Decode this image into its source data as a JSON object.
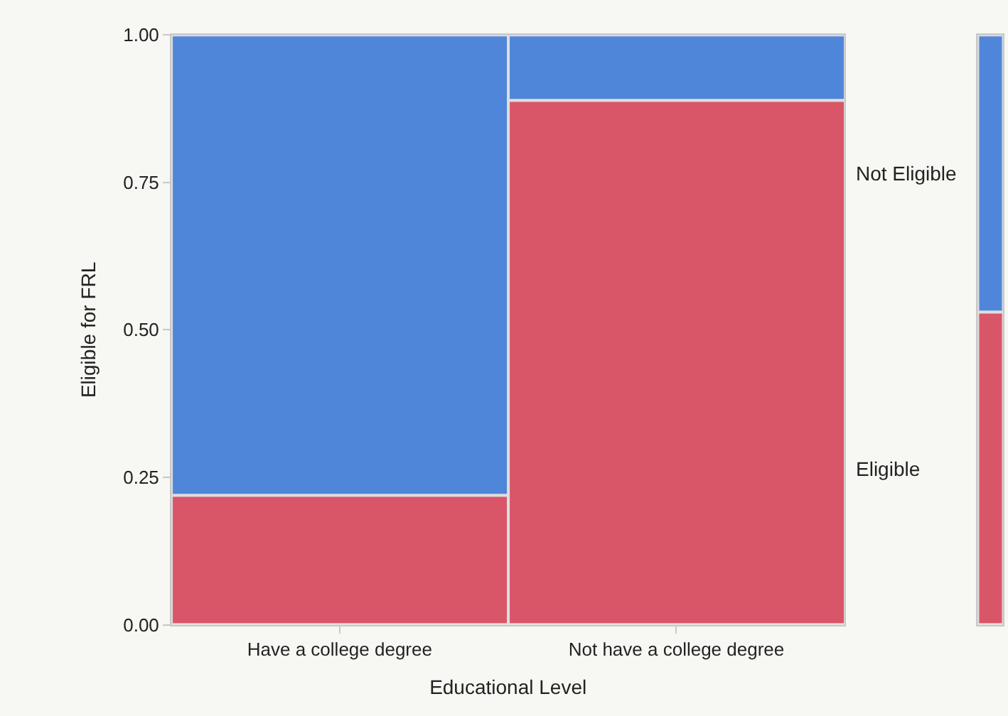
{
  "chart_data": [
    {
      "type": "bar",
      "stacked": true,
      "xlabel": "Educational Level",
      "ylabel": "Eligible for FRL",
      "categories": [
        "Have a college degree",
        "Not have a college degree"
      ],
      "series": [
        {
          "name": "Eligible",
          "color": "#d95568",
          "values": [
            0.22,
            0.89
          ]
        },
        {
          "name": "Not Eligible",
          "color": "#4f86d9",
          "values": [
            0.78,
            0.11
          ]
        }
      ],
      "ylim": [
        0,
        1
      ],
      "yticks": [
        {
          "value": 0,
          "label": "0.00"
        },
        {
          "value": 0.25,
          "label": "0.25"
        },
        {
          "value": 0.5,
          "label": "0.50"
        },
        {
          "value": 0.75,
          "label": "0.75"
        },
        {
          "value": 1,
          "label": "1.00"
        }
      ],
      "grid": false,
      "legend": false
    },
    {
      "type": "bar",
      "stacked": true,
      "categories": [
        null
      ],
      "series": [
        {
          "color": "#d95568",
          "values": [
            0.53
          ]
        },
        {
          "color": "#4f86d9",
          "values": [
            0.47
          ]
        }
      ],
      "ylim": [
        0,
        1
      ],
      "tick_labels": false,
      "grid": false,
      "legend": false
    }
  ]
}
